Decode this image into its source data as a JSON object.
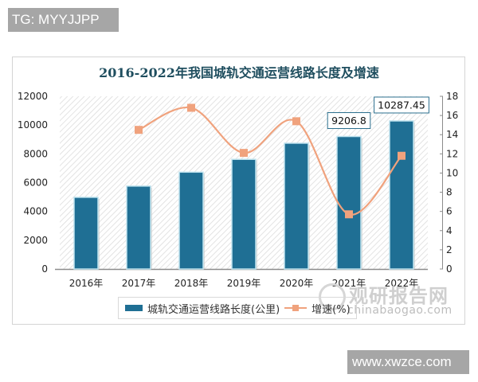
{
  "watermarks": {
    "top_tag": "TG: MYYJJPP",
    "bottom_tag": "www.xwzce.com",
    "brand_cn": "观研报告网",
    "brand_en": "chinabaogao.com"
  },
  "colors": {
    "bar": "#1f6f94",
    "line": "#f0a27d",
    "title": "#1f4e5f",
    "tag_bg": "#a6a6a6"
  },
  "chart_data": {
    "type": "bar",
    "title": "2016-2022年我国城轨交通运营线路长度及增速",
    "xlabel": "",
    "ylabel": "",
    "categories": [
      "2016年",
      "2017年",
      "2018年",
      "2019年",
      "2020年",
      "2021年",
      "2022年"
    ],
    "series": [
      {
        "name": "城轨交通运营线路长度(公里)",
        "type": "bar",
        "axis": "left",
        "values": [
          4980,
          5760,
          6730,
          7620,
          8740,
          9206.8,
          10287.45
        ],
        "data_labels": [
          null,
          null,
          null,
          null,
          null,
          "9206.8",
          "10287.45"
        ]
      },
      {
        "name": "增速(%)",
        "type": "line",
        "axis": "right",
        "values": [
          null,
          14.5,
          16.8,
          12.1,
          15.4,
          5.7,
          11.8
        ]
      }
    ],
    "ylim": [
      0,
      12000
    ],
    "y2lim": [
      0,
      18
    ],
    "yticks": [
      0,
      2000,
      4000,
      6000,
      8000,
      10000,
      12000
    ],
    "y2ticks": [
      0,
      2,
      4,
      6,
      8,
      10,
      12,
      14,
      16,
      18
    ],
    "legend_position": "bottom",
    "grid": false,
    "plot_background": "diagonal hatch"
  }
}
